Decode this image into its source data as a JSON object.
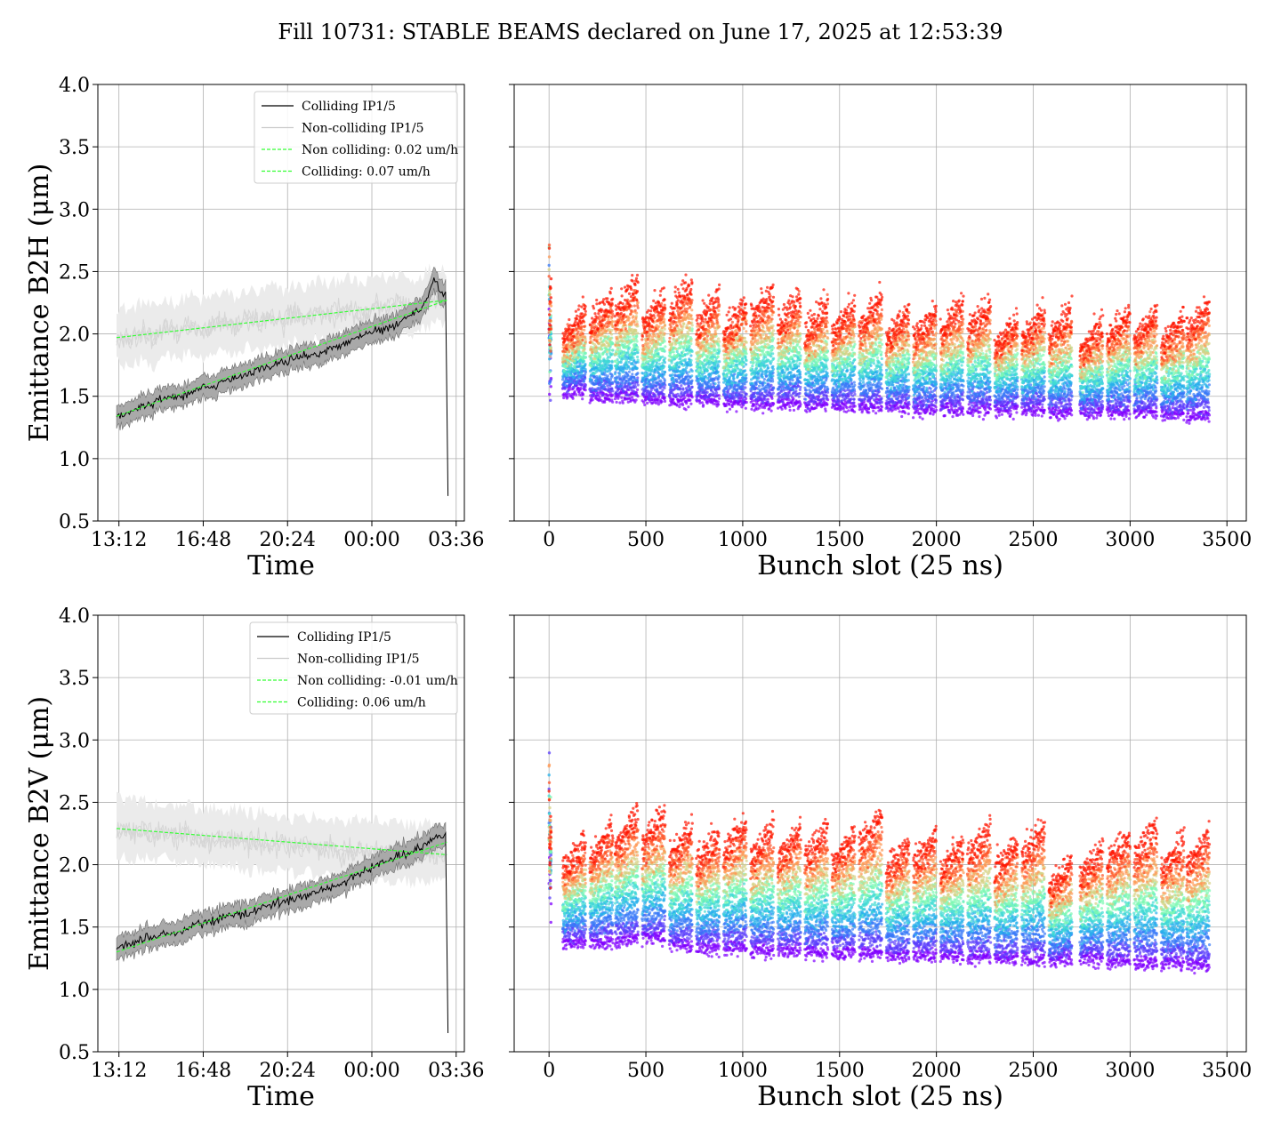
{
  "figure": {
    "title": "Fill 10731: STABLE BEAMS declared on June 17, 2025 at 12:53:39"
  },
  "chart_data": [
    {
      "id": "h_time",
      "type": "line",
      "xlabel": "Time",
      "ylabel": "Emittance B2H (μm)",
      "ylim": [
        0.5,
        4.0
      ],
      "xtick_labels": [
        "13:12",
        "16:48",
        "20:24",
        "00:00",
        "03:36"
      ],
      "xtick_hours": [
        0,
        3.6,
        7.2,
        10.8,
        14.4
      ],
      "xlim_hours": [
        -0.9,
        14.75
      ],
      "grid": true,
      "legend_position": "top-right",
      "series": [
        {
          "name": "Colliding IP1/5",
          "color": "#000000",
          "style": "solid",
          "x_hours": [
            -0.1,
            0.5,
            1,
            1.5,
            2,
            2.5,
            3,
            3.5,
            4,
            4.5,
            5,
            5.5,
            6,
            6.5,
            7,
            7.5,
            8,
            8.5,
            9,
            9.5,
            10,
            10.5,
            11,
            11.5,
            12,
            12.5,
            13,
            13.5,
            13.8,
            14.0,
            14.05
          ],
          "y": [
            1.33,
            1.38,
            1.42,
            1.45,
            1.49,
            1.5,
            1.52,
            1.56,
            1.58,
            1.62,
            1.65,
            1.68,
            1.72,
            1.73,
            1.78,
            1.8,
            1.82,
            1.84,
            1.88,
            1.91,
            1.95,
            2.0,
            2.02,
            2.05,
            2.1,
            2.15,
            2.22,
            2.45,
            2.3,
            2.35,
            0.7
          ]
        },
        {
          "name": "Non-colliding IP1/5",
          "color": "#cccccc",
          "style": "solid",
          "x_hours": [
            -0.1,
            0.5,
            1,
            1.5,
            2,
            2.5,
            3,
            3.5,
            4,
            4.5,
            5,
            5.5,
            6,
            6.5,
            7,
            7.5,
            8,
            8.5,
            9,
            9.5,
            10,
            10.5,
            11,
            11.5,
            12,
            12.5,
            13,
            13.5,
            14.0
          ],
          "y": [
            1.98,
            1.95,
            2.02,
            1.96,
            2.05,
            2.0,
            2.08,
            2.02,
            2.06,
            2.1,
            2.04,
            2.12,
            2.08,
            2.15,
            2.1,
            2.16,
            2.12,
            2.2,
            2.14,
            2.22,
            2.18,
            2.15,
            2.24,
            2.2,
            2.26,
            2.18,
            2.25,
            2.3,
            2.28
          ]
        },
        {
          "name": "Non colliding: 0.02 um/h",
          "color": "#33ff33",
          "style": "dashed",
          "x_hours": [
            -0.1,
            14.0
          ],
          "y": [
            1.97,
            2.27
          ]
        },
        {
          "name": "Colliding: 0.07 um/h",
          "color": "#33ff33",
          "style": "dashed",
          "x_hours": [
            -0.1,
            14.0
          ],
          "y": [
            1.34,
            2.27
          ]
        }
      ]
    },
    {
      "id": "h_bunch",
      "type": "scatter",
      "xlabel": "Bunch slot (25 ns)",
      "ylabel": "",
      "ylim": [
        0.5,
        4.0
      ],
      "xlim": [
        -180,
        3600
      ],
      "xticks": [
        0,
        500,
        1000,
        1500,
        2000,
        2500,
        3000,
        3500
      ],
      "grid": true,
      "colormap": "rainbow (blue = early, red = late)",
      "train_starts": [
        70,
        210,
        340,
        480,
        620,
        760,
        900,
        1040,
        1180,
        1320,
        1460,
        1600,
        1740,
        1880,
        2020,
        2160,
        2300,
        2440,
        2580,
        2740,
        2880,
        3020,
        3160,
        3290
      ],
      "train_length": 120,
      "early_level": [
        1.55,
        1.5,
        1.5,
        1.48,
        1.47,
        1.47,
        1.45,
        1.44,
        1.45,
        1.44,
        1.43,
        1.42,
        1.42,
        1.4,
        1.4,
        1.4,
        1.4,
        1.4,
        1.38,
        1.38,
        1.38,
        1.38,
        1.36,
        1.35
      ],
      "late_level": [
        1.95,
        2.05,
        2.15,
        2.05,
        2.15,
        2.05,
        2.0,
        2.1,
        2.05,
        2.0,
        2.0,
        2.05,
        1.95,
        1.95,
        2.0,
        2.0,
        1.9,
        1.95,
        1.95,
        1.85,
        1.95,
        1.95,
        1.9,
        2.0
      ]
    },
    {
      "id": "v_time",
      "type": "line",
      "xlabel": "Time",
      "ylabel": "Emittance B2V (μm)",
      "ylim": [
        0.5,
        4.0
      ],
      "xtick_labels": [
        "13:12",
        "16:48",
        "20:24",
        "00:00",
        "03:36"
      ],
      "xtick_hours": [
        0,
        3.6,
        7.2,
        10.8,
        14.4
      ],
      "xlim_hours": [
        -0.9,
        14.75
      ],
      "grid": true,
      "legend_position": "top-right",
      "series": [
        {
          "name": "Colliding IP1/5",
          "color": "#000000",
          "style": "solid",
          "x_hours": [
            -0.1,
            0.5,
            1,
            1.5,
            2,
            2.5,
            3,
            3.5,
            4,
            4.5,
            5,
            5.5,
            6,
            6.5,
            7,
            7.5,
            8,
            8.5,
            9,
            9.5,
            10,
            10.5,
            11,
            11.5,
            12,
            12.5,
            13,
            13.5,
            14.0,
            14.05
          ],
          "y": [
            1.35,
            1.36,
            1.4,
            1.42,
            1.44,
            1.46,
            1.5,
            1.52,
            1.54,
            1.58,
            1.6,
            1.62,
            1.65,
            1.68,
            1.7,
            1.72,
            1.75,
            1.78,
            1.82,
            1.85,
            1.9,
            1.95,
            2.0,
            2.04,
            2.08,
            2.1,
            2.15,
            2.2,
            2.25,
            0.65
          ]
        },
        {
          "name": "Non-colliding IP1/5",
          "color": "#cccccc",
          "style": "solid",
          "x_hours": [
            -0.1,
            0.5,
            1,
            1.5,
            2,
            2.5,
            3,
            3.5,
            4,
            4.5,
            5,
            5.5,
            6,
            6.5,
            7,
            7.5,
            8,
            8.5,
            9,
            9.5,
            10,
            10.5,
            11,
            11.5,
            12,
            12.5,
            13,
            13.5,
            14.0
          ],
          "y": [
            2.3,
            2.26,
            2.28,
            2.24,
            2.27,
            2.22,
            2.25,
            2.2,
            2.22,
            2.19,
            2.21,
            2.16,
            2.18,
            2.15,
            2.17,
            2.13,
            2.16,
            2.12,
            2.14,
            2.1,
            2.12,
            2.09,
            2.11,
            2.08,
            2.1,
            2.07,
            2.09,
            2.08,
            2.08
          ]
        },
        {
          "name": "Non colliding: -0.01 um/h",
          "color": "#33ff33",
          "style": "dashed",
          "x_hours": [
            -0.1,
            14.0
          ],
          "y": [
            2.29,
            2.08
          ]
        },
        {
          "name": "Colliding: 0.06 um/h",
          "color": "#33ff33",
          "style": "dashed",
          "x_hours": [
            -0.1,
            14.0
          ],
          "y": [
            1.3,
            2.18
          ]
        }
      ]
    },
    {
      "id": "v_bunch",
      "type": "scatter",
      "xlabel": "Bunch slot (25 ns)",
      "ylabel": "",
      "ylim": [
        0.5,
        4.0
      ],
      "xlim": [
        -180,
        3600
      ],
      "xticks": [
        0,
        500,
        1000,
        1500,
        2000,
        2500,
        3000,
        3500
      ],
      "grid": true,
      "colormap": "rainbow (blue = early, red = late)",
      "train_starts": [
        70,
        210,
        340,
        480,
        620,
        760,
        900,
        1040,
        1180,
        1320,
        1460,
        1600,
        1740,
        1880,
        2020,
        2160,
        2300,
        2440,
        2580,
        2740,
        2880,
        3020,
        3160,
        3290
      ],
      "train_length": 120,
      "early_level": [
        1.38,
        1.38,
        1.4,
        1.42,
        1.36,
        1.34,
        1.34,
        1.32,
        1.32,
        1.3,
        1.3,
        1.3,
        1.28,
        1.28,
        1.27,
        1.26,
        1.25,
        1.25,
        1.24,
        1.24,
        1.23,
        1.22,
        1.22,
        1.2
      ],
      "late_level": [
        1.95,
        2.05,
        2.15,
        2.15,
        2.05,
        2.0,
        2.1,
        2.05,
        2.05,
        2.05,
        2.0,
        2.15,
        1.95,
        2.0,
        1.95,
        2.05,
        1.95,
        2.05,
        1.8,
        1.9,
        2.0,
        2.05,
        1.95,
        2.0
      ]
    }
  ]
}
